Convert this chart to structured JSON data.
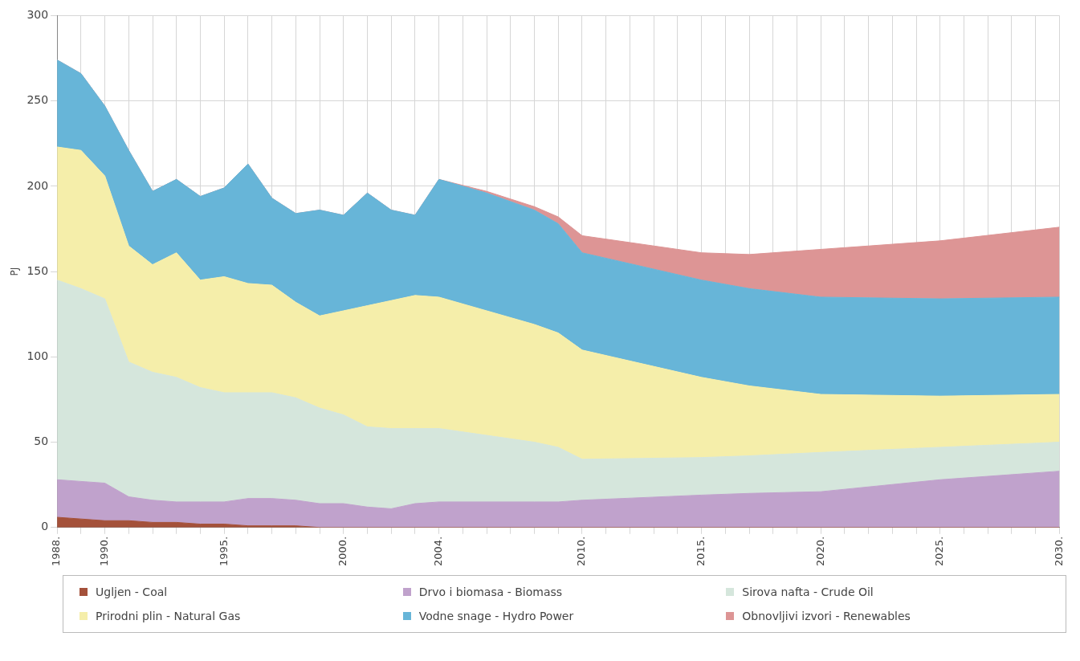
{
  "chart_data": {
    "type": "area",
    "ylabel": "PJ",
    "stacked": true,
    "x": [
      1988,
      1989,
      1990,
      1991,
      1992,
      1993,
      1994,
      1995,
      1996,
      1997,
      1998,
      1999,
      2000,
      2001,
      2002,
      2003,
      2004,
      2006,
      2008,
      2009,
      2010,
      2015,
      2017,
      2020,
      2025,
      2030
    ],
    "series": [
      {
        "name": "Ugljen - Coal",
        "color": "#a4513a",
        "values": [
          6,
          5,
          4,
          4,
          3,
          3,
          2,
          2,
          1,
          1,
          1,
          0,
          0,
          0,
          0,
          0,
          0,
          0,
          0,
          0,
          0,
          0,
          0,
          0,
          0,
          0
        ]
      },
      {
        "name": "Drvo i biomasa - Biomass",
        "color": "#c0a2cc",
        "values": [
          22,
          22,
          22,
          14,
          13,
          12,
          13,
          13,
          16,
          16,
          15,
          14,
          14,
          12,
          11,
          14,
          15,
          15,
          15,
          15,
          16,
          19,
          20,
          21,
          28,
          33
        ]
      },
      {
        "name": "Sirova nafta - Crude Oil",
        "color": "#d5e6dc",
        "values": [
          117,
          113,
          108,
          79,
          75,
          73,
          67,
          64,
          62,
          62,
          60,
          56,
          52,
          47,
          47,
          44,
          43,
          39,
          35,
          32,
          24,
          22,
          22,
          23,
          19,
          17
        ]
      },
      {
        "name": "Prirodni plin - Natural Gas",
        "color": "#f5eeaa",
        "values": [
          78,
          81,
          72,
          68,
          63,
          73,
          63,
          68,
          64,
          63,
          56,
          54,
          61,
          71,
          75,
          78,
          77,
          73,
          69,
          67,
          64,
          47,
          41,
          34,
          30,
          28
        ]
      },
      {
        "name": "Vodne snage - Hydro Power",
        "color": "#67b5d8",
        "values": [
          51,
          45,
          41,
          56,
          43,
          43,
          49,
          52,
          70,
          51,
          52,
          62,
          56,
          66,
          53,
          47,
          69,
          69,
          67,
          64,
          57,
          57,
          57,
          57,
          57,
          57
        ]
      },
      {
        "name": "Obnovljivi izvori - Renewables",
        "color": "#dd9595",
        "values": [
          0,
          0,
          0,
          0,
          0,
          0,
          0,
          0,
          0,
          0,
          0,
          0,
          0,
          0,
          0,
          0,
          0,
          1,
          2,
          4,
          10,
          16,
          20,
          28,
          34,
          41
        ]
      }
    ],
    "xlim": [
      1988,
      2030
    ],
    "xticks": [
      {
        "value": 1988,
        "label": "1988."
      },
      {
        "value": 1989,
        "label": null
      },
      {
        "value": 1990,
        "label": "1990."
      },
      {
        "value": 1991,
        "label": null
      },
      {
        "value": 1992,
        "label": null
      },
      {
        "value": 1993,
        "label": null
      },
      {
        "value": 1994,
        "label": null
      },
      {
        "value": 1995,
        "label": "1995."
      },
      {
        "value": 1996,
        "label": null
      },
      {
        "value": 1997,
        "label": null
      },
      {
        "value": 1998,
        "label": null
      },
      {
        "value": 1999,
        "label": null
      },
      {
        "value": 2000,
        "label": "2000."
      },
      {
        "value": 2001,
        "label": null
      },
      {
        "value": 2002,
        "label": null
      },
      {
        "value": 2003,
        "label": null
      },
      {
        "value": 2004,
        "label": "2004."
      },
      {
        "value": 2005,
        "label": null
      },
      {
        "value": 2006,
        "label": null
      },
      {
        "value": 2007,
        "label": null
      },
      {
        "value": 2008,
        "label": null
      },
      {
        "value": 2009,
        "label": null
      },
      {
        "value": 2010,
        "label": "2010."
      },
      {
        "value": 2011,
        "label": null
      },
      {
        "value": 2012,
        "label": null
      },
      {
        "value": 2013,
        "label": null
      },
      {
        "value": 2014,
        "label": null
      },
      {
        "value": 2015,
        "label": "2015."
      },
      {
        "value": 2016,
        "label": null
      },
      {
        "value": 2017,
        "label": null
      },
      {
        "value": 2018,
        "label": null
      },
      {
        "value": 2019,
        "label": null
      },
      {
        "value": 2020,
        "label": "2020."
      },
      {
        "value": 2021,
        "label": null
      },
      {
        "value": 2022,
        "label": null
      },
      {
        "value": 2023,
        "label": null
      },
      {
        "value": 2024,
        "label": null
      },
      {
        "value": 2025,
        "label": "2025."
      },
      {
        "value": 2026,
        "label": null
      },
      {
        "value": 2027,
        "label": null
      },
      {
        "value": 2028,
        "label": null
      },
      {
        "value": 2029,
        "label": null
      },
      {
        "value": 2030,
        "label": "2030."
      }
    ],
    "ylim": [
      0,
      300
    ],
    "yticks": [
      0,
      50,
      100,
      150,
      200,
      250,
      300
    ],
    "grid": true,
    "legend": "bottom",
    "marker": "none"
  }
}
